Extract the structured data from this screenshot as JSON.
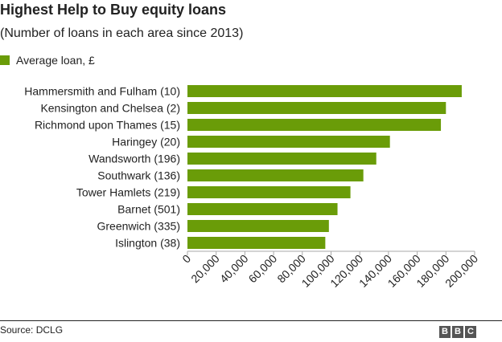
{
  "header": {
    "title": "Highest Help to Buy equity loans",
    "subtitle": "(Number of loans in each area since 2013)"
  },
  "legend": {
    "label": "Average loan, £"
  },
  "colors": {
    "bar": "#6a9c08",
    "axis": "#aaaaaa",
    "text": "#222222"
  },
  "chart_data": {
    "type": "bar",
    "orientation": "horizontal",
    "categories": [
      "Hammersmith and Fulham (10)",
      "Kensington and Chelsea (2)",
      "Richmond upon Thames (15)",
      "Haringey (20)",
      "Wandsworth (196)",
      "Southwark (136)",
      "Tower Hamlets (219)",
      "Barnet (501)",
      "Greenwich (335)",
      "Islington (38)"
    ],
    "series": [
      {
        "name": "Average loan, £",
        "values": [
          191000,
          180000,
          176500,
          141000,
          131500,
          122500,
          113500,
          104500,
          98500,
          96000
        ]
      }
    ],
    "xlim": [
      0,
      200000
    ],
    "ticks": [
      0,
      20000,
      40000,
      60000,
      80000,
      100000,
      120000,
      140000,
      160000,
      180000,
      200000
    ],
    "tick_labels": [
      "0",
      "20,000",
      "40,000",
      "60,000",
      "80,000",
      "100,000",
      "120,000",
      "140,000",
      "160,000",
      "180,000",
      "200,000"
    ],
    "grid": false,
    "legend_position": "top-left"
  },
  "footer": {
    "source": "Source: DCLG",
    "logo_letters": [
      "B",
      "B",
      "C"
    ]
  }
}
